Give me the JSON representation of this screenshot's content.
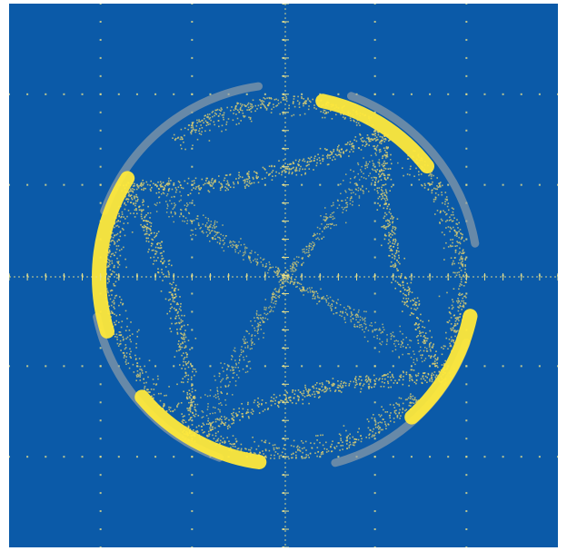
{
  "display": {
    "background_color": "#0b5aa8",
    "graticule_color": "#e8e08a",
    "trace_color": "#ffe93a",
    "trace_dim_color": "#d8cc70",
    "ghost_color": "#9aa3a8",
    "horizontal_divisions": 6,
    "vertical_divisions": 6,
    "minor_ticks_per_division": 5
  }
}
